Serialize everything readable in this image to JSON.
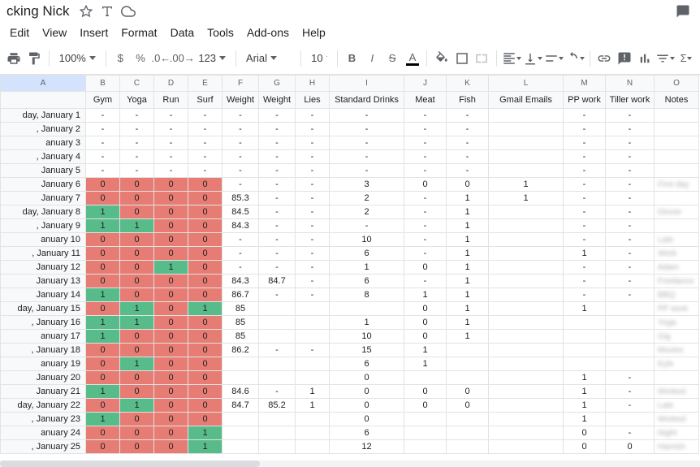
{
  "doc": {
    "title": "cking Nick"
  },
  "menu": {
    "edit": "Edit",
    "view": "View",
    "insert": "Insert",
    "format": "Format",
    "data": "Data",
    "tools": "Tools",
    "addons": "Add-ons",
    "help": "Help"
  },
  "toolbar": {
    "zoom": "100%",
    "font": "Arial",
    "size": "10",
    "more": "123"
  },
  "columns": {
    "letters": [
      "A",
      "B",
      "C",
      "D",
      "E",
      "F",
      "G",
      "H",
      "I",
      "J",
      "K",
      "L",
      "M",
      "N",
      "O"
    ],
    "headers": [
      "",
      "Gym",
      "Yoga",
      "Run",
      "Surf",
      "Weight",
      "Weight",
      "Lies",
      "Standard Drinks",
      "Meat",
      "Fish",
      "Gmail Emails",
      "PP work",
      "Tiller work",
      "Notes"
    ],
    "widths": [
      105,
      42,
      42,
      42,
      42,
      45,
      45,
      42,
      92,
      52,
      52,
      92,
      52,
      60,
      55
    ]
  },
  "colors": {
    "red": "#e67c73",
    "green": "#57bb8a",
    "hdr": "#f8f9fa"
  },
  "rows": [
    {
      "date": "day, January 1",
      "v": [
        "-",
        "-",
        "-",
        "-",
        "-",
        "-",
        "-",
        "-",
        "-",
        "-",
        "",
        "-",
        "-",
        ""
      ],
      "c": [
        "",
        "",
        "",
        "",
        "",
        "",
        "",
        "",
        "",
        "",
        "",
        "",
        "",
        ""
      ]
    },
    {
      "date": ", January 2",
      "v": [
        "-",
        "-",
        "-",
        "-",
        "-",
        "-",
        "-",
        "-",
        "-",
        "-",
        "",
        "-",
        "-",
        ""
      ],
      "c": [
        "",
        "",
        "",
        "",
        "",
        "",
        "",
        "",
        "",
        "",
        "",
        "",
        "",
        ""
      ]
    },
    {
      "date": "anuary 3",
      "v": [
        "-",
        "-",
        "-",
        "-",
        "-",
        "-",
        "-",
        "-",
        "-",
        "-",
        "",
        "-",
        "-",
        ""
      ],
      "c": [
        "",
        "",
        "",
        "",
        "",
        "",
        "",
        "",
        "",
        "",
        "",
        "",
        "",
        ""
      ]
    },
    {
      "date": ", January 4",
      "v": [
        "-",
        "-",
        "-",
        "-",
        "-",
        "-",
        "-",
        "-",
        "-",
        "-",
        "",
        "-",
        "-",
        ""
      ],
      "c": [
        "",
        "",
        "",
        "",
        "",
        "",
        "",
        "",
        "",
        "",
        "",
        "",
        "",
        ""
      ]
    },
    {
      "date": "January 5",
      "v": [
        "-",
        "-",
        "-",
        "-",
        "-",
        "-",
        "-",
        "-",
        "-",
        "-",
        "",
        "-",
        "-",
        ""
      ],
      "c": [
        "",
        "",
        "",
        "",
        "",
        "",
        "",
        "",
        "",
        "",
        "",
        "",
        "",
        ""
      ]
    },
    {
      "date": "January 6",
      "v": [
        "0",
        "0",
        "0",
        "0",
        "-",
        "-",
        "-",
        "3",
        "0",
        "0",
        "1",
        "-",
        "-",
        "First day"
      ],
      "c": [
        "r",
        "r",
        "r",
        "r",
        "",
        "",
        "",
        "",
        "",
        "",
        "",
        "",
        "",
        ""
      ]
    },
    {
      "date": "January 7",
      "v": [
        "0",
        "0",
        "0",
        "0",
        "85.3",
        "-",
        "-",
        "2",
        "-",
        "1",
        "1",
        "-",
        "-",
        ""
      ],
      "c": [
        "r",
        "r",
        "r",
        "r",
        "",
        "",
        "",
        "",
        "",
        "",
        "",
        "",
        "",
        ""
      ]
    },
    {
      "date": "day, January 8",
      "v": [
        "1",
        "0",
        "0",
        "0",
        "84.5",
        "-",
        "-",
        "2",
        "-",
        "1",
        "",
        "-",
        "-",
        "Dinner"
      ],
      "c": [
        "g",
        "r",
        "r",
        "r",
        "",
        "",
        "",
        "",
        "",
        "",
        "",
        "",
        "",
        ""
      ]
    },
    {
      "date": ", January 9",
      "v": [
        "1",
        "1",
        "0",
        "0",
        "84.3",
        "-",
        "-",
        "-",
        "-",
        "1",
        "",
        "-",
        "-",
        ""
      ],
      "c": [
        "g",
        "g",
        "r",
        "r",
        "",
        "",
        "",
        "",
        "",
        "",
        "",
        "",
        "",
        ""
      ]
    },
    {
      "date": "anuary 10",
      "v": [
        "0",
        "0",
        "0",
        "0",
        "-",
        "-",
        "-",
        "10",
        "-",
        "1",
        "",
        "-",
        "-",
        "Late"
      ],
      "c": [
        "r",
        "r",
        "r",
        "r",
        "",
        "",
        "",
        "",
        "",
        "",
        "",
        "",
        "",
        ""
      ]
    },
    {
      "date": ", January 11",
      "v": [
        "0",
        "0",
        "0",
        "0",
        "-",
        "-",
        "-",
        "6",
        "-",
        "1",
        "",
        "1",
        "-",
        "Work"
      ],
      "c": [
        "r",
        "r",
        "r",
        "r",
        "",
        "",
        "",
        "",
        "",
        "",
        "",
        "",
        "",
        ""
      ]
    },
    {
      "date": "January 12",
      "v": [
        "0",
        "0",
        "1",
        "0",
        "-",
        "-",
        "-",
        "1",
        "0",
        "1",
        "",
        "-",
        "-",
        "Adam"
      ],
      "c": [
        "r",
        "r",
        "g",
        "r",
        "",
        "",
        "",
        "",
        "",
        "",
        "",
        "",
        "",
        ""
      ]
    },
    {
      "date": "January 13",
      "v": [
        "0",
        "0",
        "0",
        "0",
        "84.3",
        "84.7",
        "-",
        "6",
        "-",
        "1",
        "",
        "-",
        "-",
        "Freelance"
      ],
      "c": [
        "r",
        "r",
        "r",
        "r",
        "",
        "",
        "",
        "",
        "",
        "",
        "",
        "",
        "",
        ""
      ]
    },
    {
      "date": "January 14",
      "v": [
        "1",
        "0",
        "0",
        "0",
        "86.7",
        "-",
        "-",
        "8",
        "1",
        "1",
        "",
        "-",
        "-",
        "BBQ"
      ],
      "c": [
        "g",
        "r",
        "r",
        "r",
        "",
        "",
        "",
        "",
        "",
        "",
        "",
        "",
        "",
        ""
      ]
    },
    {
      "date": "day, January 15",
      "v": [
        "0",
        "1",
        "0",
        "1",
        "85",
        "",
        "",
        "",
        "0",
        "1",
        "",
        "1",
        "",
        "PP work"
      ],
      "c": [
        "r",
        "g",
        "r",
        "g",
        "",
        "",
        "",
        "",
        "",
        "",
        "",
        "",
        "",
        ""
      ]
    },
    {
      "date": ", January 16",
      "v": [
        "1",
        "1",
        "0",
        "0",
        "85",
        "",
        "",
        "1",
        "0",
        "1",
        "",
        "",
        "",
        "Yoga"
      ],
      "c": [
        "g",
        "g",
        "r",
        "r",
        "",
        "",
        "",
        "",
        "",
        "",
        "",
        "",
        "",
        ""
      ]
    },
    {
      "date": "anuary 17",
      "v": [
        "1",
        "0",
        "0",
        "0",
        "85",
        "",
        "",
        "10",
        "0",
        "1",
        "",
        "",
        "",
        "Gig"
      ],
      "c": [
        "g",
        "r",
        "r",
        "r",
        "",
        "",
        "",
        "",
        "",
        "",
        "",
        "",
        "",
        ""
      ]
    },
    {
      "date": ", January 18",
      "v": [
        "0",
        "0",
        "0",
        "0",
        "86.2",
        "-",
        "-",
        "15",
        "1",
        "",
        "",
        "",
        "",
        "Movies"
      ],
      "c": [
        "r",
        "r",
        "r",
        "r",
        "",
        "",
        "",
        "",
        "",
        "",
        "",
        "",
        "",
        ""
      ]
    },
    {
      "date": "anuary 19",
      "v": [
        "0",
        "1",
        "0",
        "0",
        "",
        "",
        "",
        "6",
        "1",
        "",
        "",
        "",
        "",
        "Kyle"
      ],
      "c": [
        "r",
        "g",
        "r",
        "r",
        "",
        "",
        "",
        "",
        "",
        "",
        "",
        "",
        "",
        ""
      ]
    },
    {
      "date": "January 20",
      "v": [
        "0",
        "0",
        "0",
        "0",
        "",
        "",
        "",
        "0",
        "",
        "",
        "",
        "1",
        "-",
        ""
      ],
      "c": [
        "r",
        "r",
        "r",
        "r",
        "",
        "",
        "",
        "",
        "",
        "",
        "",
        "",
        "",
        ""
      ]
    },
    {
      "date": "January 21",
      "v": [
        "1",
        "0",
        "0",
        "0",
        "84.6",
        "-",
        "1",
        "0",
        "0",
        "0",
        "",
        "1",
        "-",
        "Worked"
      ],
      "c": [
        "g",
        "r",
        "r",
        "r",
        "",
        "",
        "",
        "",
        "",
        "",
        "",
        "",
        "",
        ""
      ]
    },
    {
      "date": "day, January 22",
      "v": [
        "0",
        "1",
        "0",
        "0",
        "84.7",
        "85.2",
        "1",
        "0",
        "0",
        "0",
        "",
        "1",
        "-",
        "Late"
      ],
      "c": [
        "r",
        "g",
        "r",
        "r",
        "",
        "",
        "",
        "",
        "",
        "",
        "",
        "",
        "",
        ""
      ]
    },
    {
      "date": ", January 23",
      "v": [
        "1",
        "0",
        "0",
        "0",
        "",
        "",
        "",
        "0",
        "",
        "",
        "",
        "1",
        "",
        "Worked"
      ],
      "c": [
        "g",
        "r",
        "r",
        "r",
        "",
        "",
        "",
        "",
        "",
        "",
        "",
        "",
        "",
        ""
      ]
    },
    {
      "date": "anuary 24",
      "v": [
        "0",
        "0",
        "0",
        "1",
        "",
        "",
        "",
        "6",
        "",
        "",
        "",
        "0",
        "-",
        "Night"
      ],
      "c": [
        "r",
        "r",
        "r",
        "g",
        "",
        "",
        "",
        "",
        "",
        "",
        "",
        "",
        "",
        ""
      ]
    },
    {
      "date": ", January 25",
      "v": [
        "0",
        "0",
        "0",
        "1",
        "",
        "",
        "",
        "12",
        "",
        "",
        "",
        "0",
        "0",
        "Hamish"
      ],
      "c": [
        "r",
        "r",
        "r",
        "g",
        "",
        "",
        "",
        "",
        "",
        "",
        "",
        "",
        "",
        ""
      ]
    }
  ]
}
